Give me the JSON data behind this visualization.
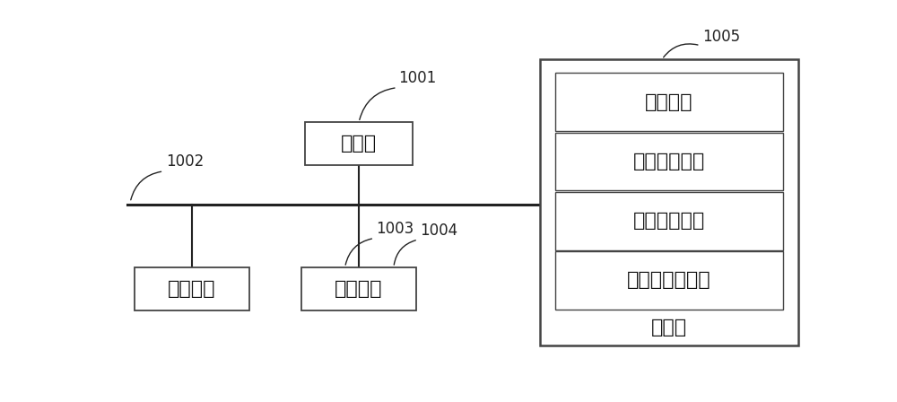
{
  "bg_color": "#ffffff",
  "line_color": "#222222",
  "box_fill": "#ffffff",
  "box_edge": "#444444",
  "storage_fill": "#ffffff",
  "storage_edge": "#444444",
  "module_fill": "#ffffff",
  "module_edge": "#444444",
  "font_size": 16,
  "label_font_size": 12,
  "processor_label": "处理器",
  "processor_id": "1001",
  "bus_id": "1002",
  "user_iface_label": "用户接口",
  "user_iface_id": "1003",
  "net_iface_label": "网络接口",
  "net_iface_id": "1004",
  "storage_id": "1005",
  "storage_label": "存储器",
  "modules": [
    "操作系统",
    "网络通信模块",
    "用户接口模块",
    "停车场收费程序"
  ]
}
